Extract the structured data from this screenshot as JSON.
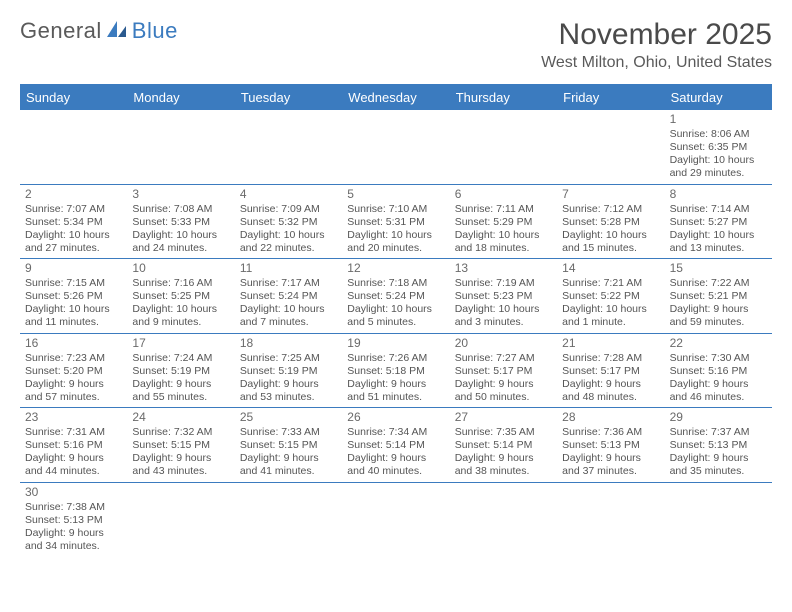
{
  "brand": {
    "name1": "General",
    "name2": "Blue"
  },
  "title": "November 2025",
  "location": "West Milton, Ohio, United States",
  "colors": {
    "accent": "#3b7bbf",
    "text": "#4a4a4a",
    "bg": "#ffffff"
  },
  "day_headers": [
    "Sunday",
    "Monday",
    "Tuesday",
    "Wednesday",
    "Thursday",
    "Friday",
    "Saturday"
  ],
  "weeks": [
    [
      null,
      null,
      null,
      null,
      null,
      null,
      {
        "n": "1",
        "sr": "Sunrise: 8:06 AM",
        "ss": "Sunset: 6:35 PM",
        "d1": "Daylight: 10 hours",
        "d2": "and 29 minutes."
      }
    ],
    [
      {
        "n": "2",
        "sr": "Sunrise: 7:07 AM",
        "ss": "Sunset: 5:34 PM",
        "d1": "Daylight: 10 hours",
        "d2": "and 27 minutes."
      },
      {
        "n": "3",
        "sr": "Sunrise: 7:08 AM",
        "ss": "Sunset: 5:33 PM",
        "d1": "Daylight: 10 hours",
        "d2": "and 24 minutes."
      },
      {
        "n": "4",
        "sr": "Sunrise: 7:09 AM",
        "ss": "Sunset: 5:32 PM",
        "d1": "Daylight: 10 hours",
        "d2": "and 22 minutes."
      },
      {
        "n": "5",
        "sr": "Sunrise: 7:10 AM",
        "ss": "Sunset: 5:31 PM",
        "d1": "Daylight: 10 hours",
        "d2": "and 20 minutes."
      },
      {
        "n": "6",
        "sr": "Sunrise: 7:11 AM",
        "ss": "Sunset: 5:29 PM",
        "d1": "Daylight: 10 hours",
        "d2": "and 18 minutes."
      },
      {
        "n": "7",
        "sr": "Sunrise: 7:12 AM",
        "ss": "Sunset: 5:28 PM",
        "d1": "Daylight: 10 hours",
        "d2": "and 15 minutes."
      },
      {
        "n": "8",
        "sr": "Sunrise: 7:14 AM",
        "ss": "Sunset: 5:27 PM",
        "d1": "Daylight: 10 hours",
        "d2": "and 13 minutes."
      }
    ],
    [
      {
        "n": "9",
        "sr": "Sunrise: 7:15 AM",
        "ss": "Sunset: 5:26 PM",
        "d1": "Daylight: 10 hours",
        "d2": "and 11 minutes."
      },
      {
        "n": "10",
        "sr": "Sunrise: 7:16 AM",
        "ss": "Sunset: 5:25 PM",
        "d1": "Daylight: 10 hours",
        "d2": "and 9 minutes."
      },
      {
        "n": "11",
        "sr": "Sunrise: 7:17 AM",
        "ss": "Sunset: 5:24 PM",
        "d1": "Daylight: 10 hours",
        "d2": "and 7 minutes."
      },
      {
        "n": "12",
        "sr": "Sunrise: 7:18 AM",
        "ss": "Sunset: 5:24 PM",
        "d1": "Daylight: 10 hours",
        "d2": "and 5 minutes."
      },
      {
        "n": "13",
        "sr": "Sunrise: 7:19 AM",
        "ss": "Sunset: 5:23 PM",
        "d1": "Daylight: 10 hours",
        "d2": "and 3 minutes."
      },
      {
        "n": "14",
        "sr": "Sunrise: 7:21 AM",
        "ss": "Sunset: 5:22 PM",
        "d1": "Daylight: 10 hours",
        "d2": "and 1 minute."
      },
      {
        "n": "15",
        "sr": "Sunrise: 7:22 AM",
        "ss": "Sunset: 5:21 PM",
        "d1": "Daylight: 9 hours",
        "d2": "and 59 minutes."
      }
    ],
    [
      {
        "n": "16",
        "sr": "Sunrise: 7:23 AM",
        "ss": "Sunset: 5:20 PM",
        "d1": "Daylight: 9 hours",
        "d2": "and 57 minutes."
      },
      {
        "n": "17",
        "sr": "Sunrise: 7:24 AM",
        "ss": "Sunset: 5:19 PM",
        "d1": "Daylight: 9 hours",
        "d2": "and 55 minutes."
      },
      {
        "n": "18",
        "sr": "Sunrise: 7:25 AM",
        "ss": "Sunset: 5:19 PM",
        "d1": "Daylight: 9 hours",
        "d2": "and 53 minutes."
      },
      {
        "n": "19",
        "sr": "Sunrise: 7:26 AM",
        "ss": "Sunset: 5:18 PM",
        "d1": "Daylight: 9 hours",
        "d2": "and 51 minutes."
      },
      {
        "n": "20",
        "sr": "Sunrise: 7:27 AM",
        "ss": "Sunset: 5:17 PM",
        "d1": "Daylight: 9 hours",
        "d2": "and 50 minutes."
      },
      {
        "n": "21",
        "sr": "Sunrise: 7:28 AM",
        "ss": "Sunset: 5:17 PM",
        "d1": "Daylight: 9 hours",
        "d2": "and 48 minutes."
      },
      {
        "n": "22",
        "sr": "Sunrise: 7:30 AM",
        "ss": "Sunset: 5:16 PM",
        "d1": "Daylight: 9 hours",
        "d2": "and 46 minutes."
      }
    ],
    [
      {
        "n": "23",
        "sr": "Sunrise: 7:31 AM",
        "ss": "Sunset: 5:16 PM",
        "d1": "Daylight: 9 hours",
        "d2": "and 44 minutes."
      },
      {
        "n": "24",
        "sr": "Sunrise: 7:32 AM",
        "ss": "Sunset: 5:15 PM",
        "d1": "Daylight: 9 hours",
        "d2": "and 43 minutes."
      },
      {
        "n": "25",
        "sr": "Sunrise: 7:33 AM",
        "ss": "Sunset: 5:15 PM",
        "d1": "Daylight: 9 hours",
        "d2": "and 41 minutes."
      },
      {
        "n": "26",
        "sr": "Sunrise: 7:34 AM",
        "ss": "Sunset: 5:14 PM",
        "d1": "Daylight: 9 hours",
        "d2": "and 40 minutes."
      },
      {
        "n": "27",
        "sr": "Sunrise: 7:35 AM",
        "ss": "Sunset: 5:14 PM",
        "d1": "Daylight: 9 hours",
        "d2": "and 38 minutes."
      },
      {
        "n": "28",
        "sr": "Sunrise: 7:36 AM",
        "ss": "Sunset: 5:13 PM",
        "d1": "Daylight: 9 hours",
        "d2": "and 37 minutes."
      },
      {
        "n": "29",
        "sr": "Sunrise: 7:37 AM",
        "ss": "Sunset: 5:13 PM",
        "d1": "Daylight: 9 hours",
        "d2": "and 35 minutes."
      }
    ],
    [
      {
        "n": "30",
        "sr": "Sunrise: 7:38 AM",
        "ss": "Sunset: 5:13 PM",
        "d1": "Daylight: 9 hours",
        "d2": "and 34 minutes."
      },
      null,
      null,
      null,
      null,
      null,
      null
    ]
  ]
}
